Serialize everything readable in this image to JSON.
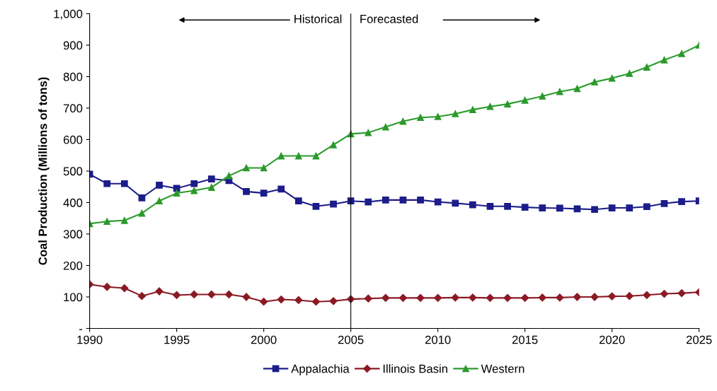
{
  "chart_data": {
    "type": "line",
    "ylabel": "Coal Production (Millions of tons)",
    "x": [
      1990,
      1991,
      1992,
      1993,
      1994,
      1995,
      1996,
      1997,
      1998,
      1999,
      2000,
      2001,
      2002,
      2003,
      2004,
      2005,
      2006,
      2007,
      2008,
      2009,
      2010,
      2011,
      2012,
      2013,
      2014,
      2015,
      2016,
      2017,
      2018,
      2019,
      2020,
      2021,
      2022,
      2023,
      2024,
      2025
    ],
    "series": [
      {
        "name": "Appalachia",
        "color": "#1c1c8a",
        "marker": "square",
        "values": [
          490,
          460,
          460,
          415,
          455,
          445,
          460,
          475,
          470,
          435,
          430,
          443,
          405,
          388,
          395,
          405,
          402,
          408,
          408,
          408,
          402,
          398,
          393,
          388,
          388,
          385,
          383,
          382,
          380,
          378,
          383,
          383,
          387,
          397,
          403,
          405
        ]
      },
      {
        "name": "Illinois Basin",
        "color": "#8b1a24",
        "marker": "diamond",
        "values": [
          140,
          132,
          128,
          103,
          118,
          106,
          108,
          108,
          108,
          100,
          85,
          92,
          90,
          85,
          87,
          93,
          95,
          97,
          97,
          97,
          97,
          98,
          98,
          97,
          97,
          97,
          98,
          98,
          100,
          100,
          102,
          103,
          106,
          110,
          112,
          115
        ]
      },
      {
        "name": "Western",
        "color": "#2a9a2a",
        "marker": "triangle",
        "values": [
          333,
          340,
          343,
          366,
          405,
          430,
          438,
          448,
          485,
          510,
          510,
          548,
          548,
          548,
          583,
          618,
          622,
          640,
          658,
          670,
          673,
          682,
          695,
          705,
          713,
          725,
          738,
          752,
          762,
          783,
          795,
          810,
          830,
          853,
          873,
          900
        ]
      }
    ],
    "xlim": [
      1990,
      2025
    ],
    "xticks": [
      1990,
      1995,
      2000,
      2005,
      2010,
      2015,
      2020,
      2025
    ],
    "ylim": [
      0,
      1000
    ],
    "yticks": [
      {
        "value": 0,
        "label": "-"
      },
      100,
      200,
      300,
      400,
      500,
      600,
      700,
      800,
      900,
      {
        "value": 1000,
        "label": "1,000"
      }
    ],
    "ref_lines": [
      {
        "axis": "x",
        "value": 2005,
        "label": null,
        "color": "#000000"
      }
    ],
    "annotations": [
      "Historical",
      "Forecasted"
    ],
    "grid": false,
    "legend": "bottom",
    "line_style": "solid"
  }
}
